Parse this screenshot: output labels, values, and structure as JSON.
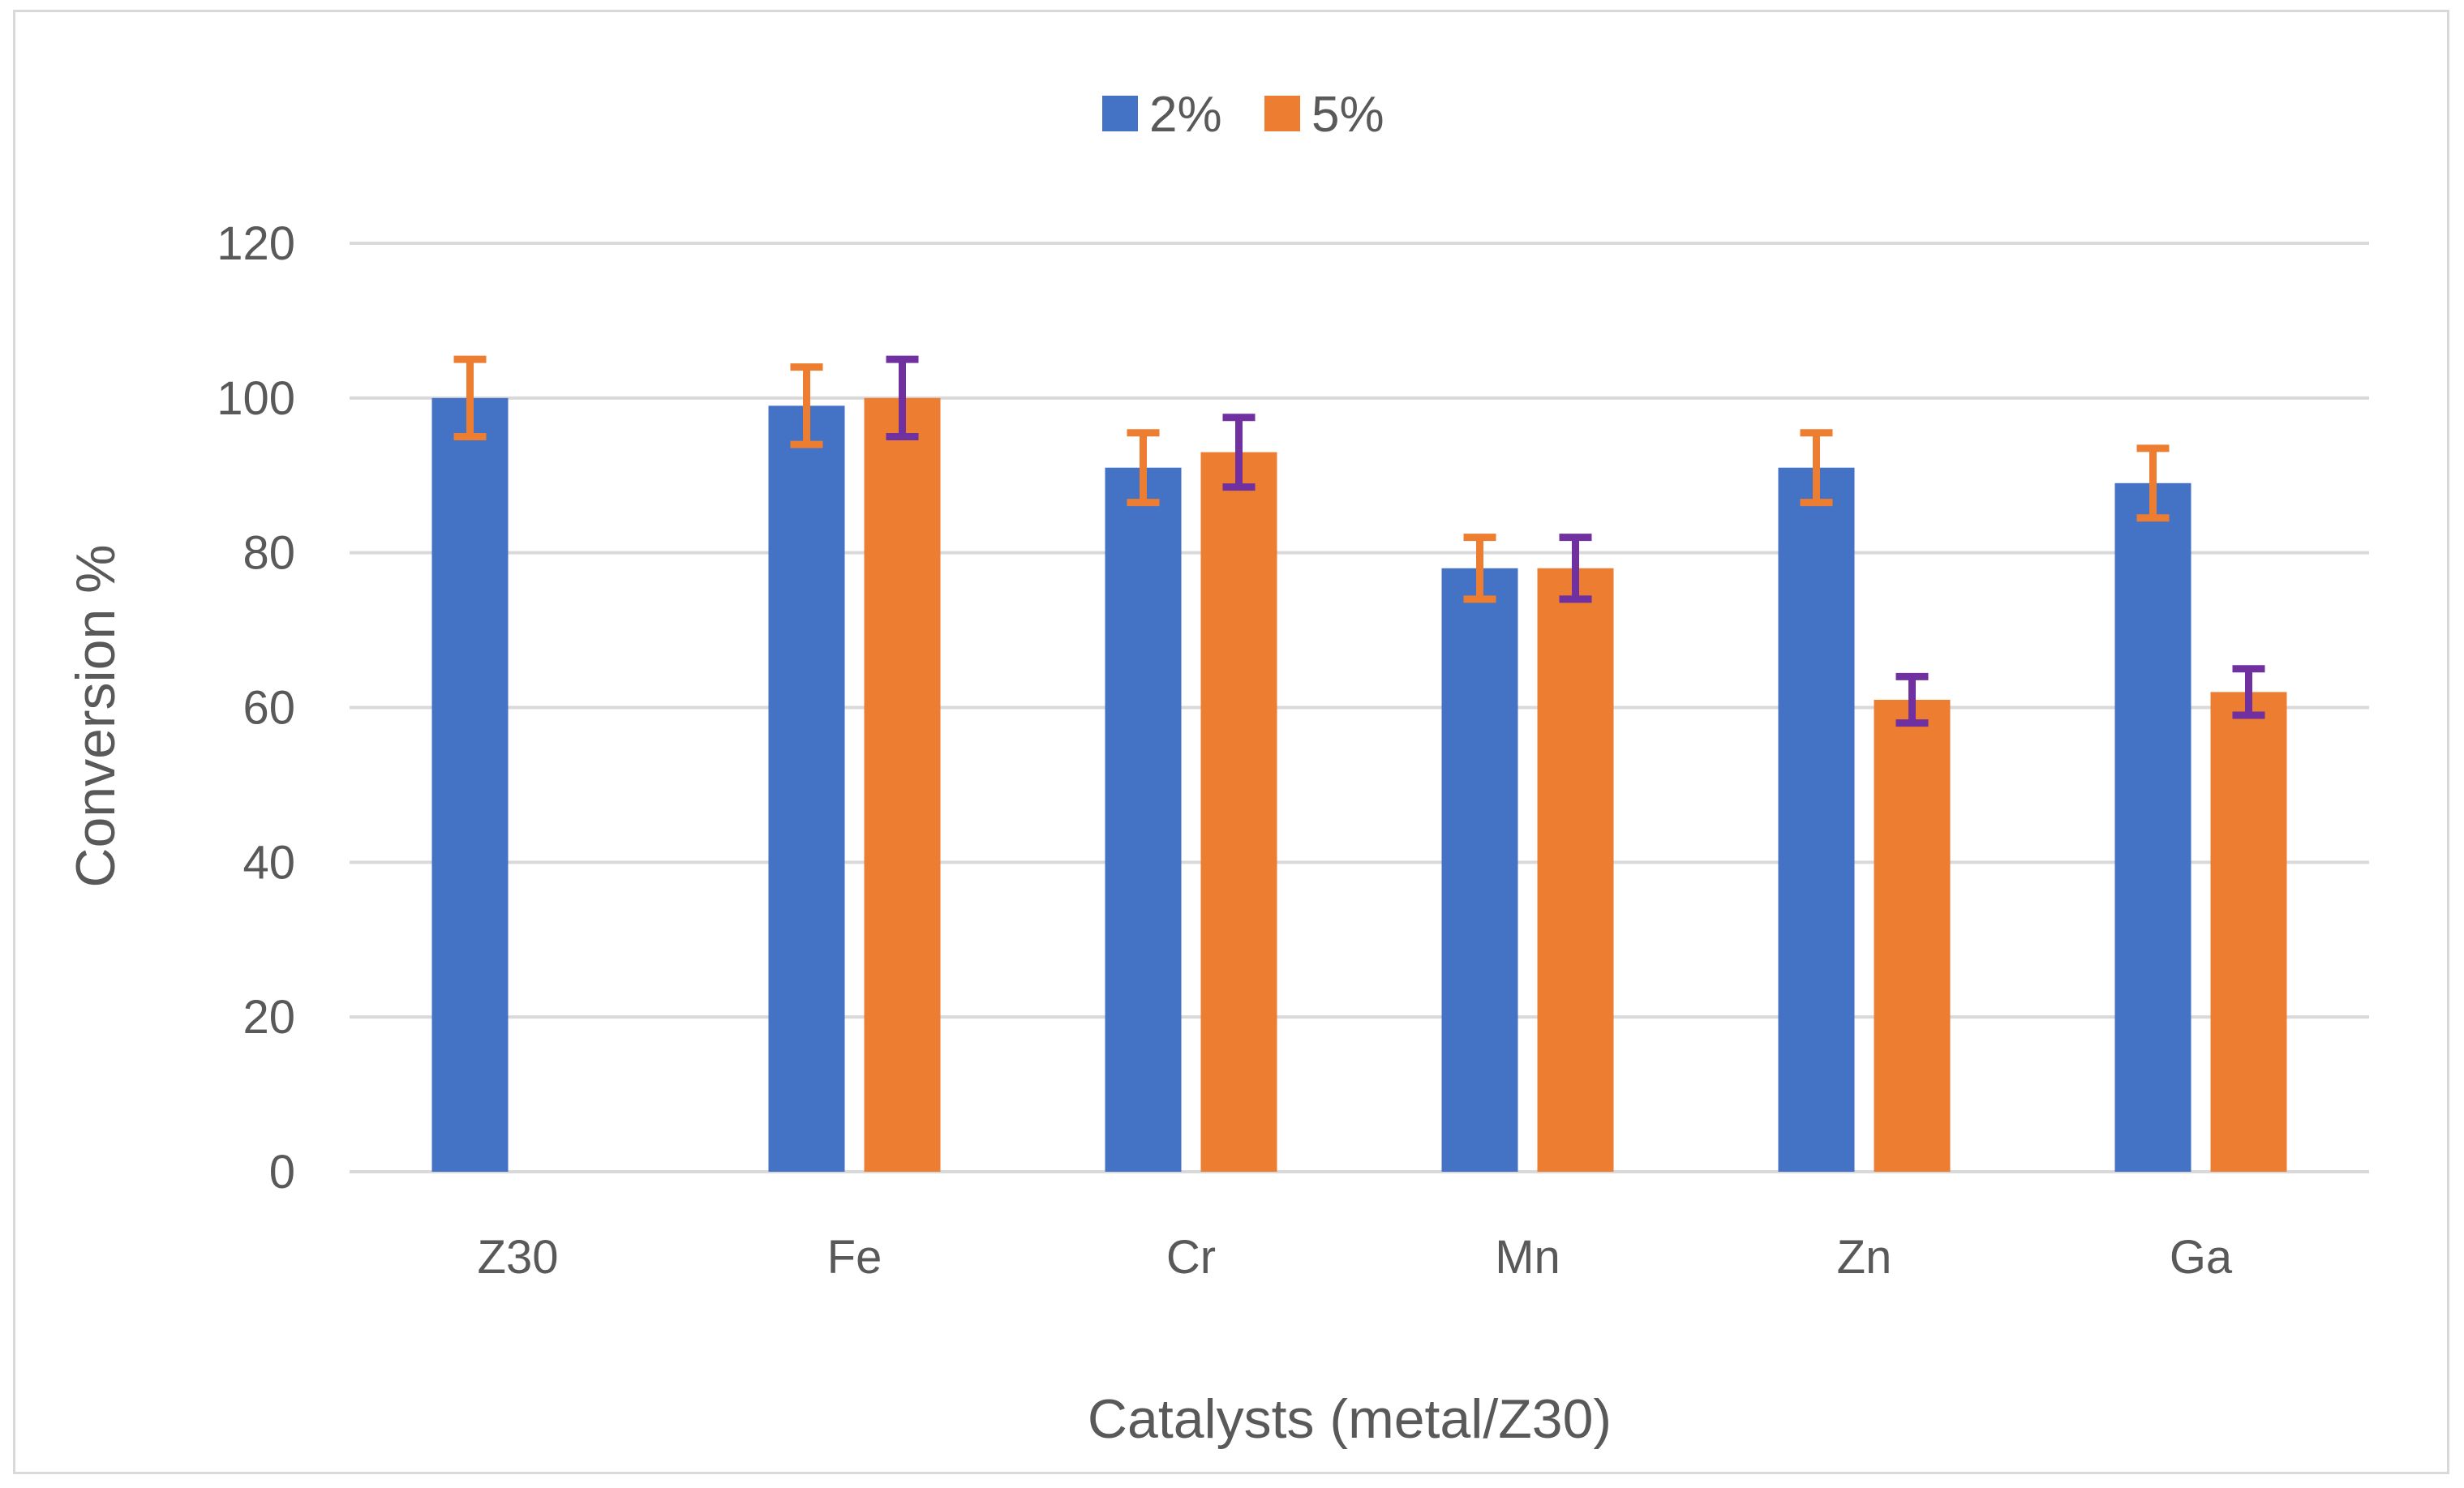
{
  "chart_data": {
    "type": "bar",
    "title": "",
    "xlabel": "Catalysts (metal/Z30)",
    "ylabel": "Conversion %",
    "ylim": [
      0,
      120
    ],
    "yticks": [
      "0",
      "20",
      "40",
      "60",
      "80",
      "100",
      "120"
    ],
    "grid": true,
    "legend_position": "top-center",
    "categories": [
      "Z30",
      "Fe",
      "Cr",
      "Mn",
      "Zn",
      "Ga"
    ],
    "series": [
      {
        "name": "2%",
        "color": "#4472c4",
        "values": [
          100,
          99,
          91,
          78,
          91,
          89
        ],
        "errors": [
          5,
          5,
          4.5,
          4,
          4.5,
          4.5
        ],
        "error_color": "#ed7d31"
      },
      {
        "name": "5%",
        "color": "#ed7d31",
        "values": [
          null,
          100,
          93,
          78,
          61,
          62
        ],
        "errors": [
          null,
          5,
          4.5,
          4,
          3,
          3
        ],
        "error_color": "#7030a0"
      }
    ]
  }
}
